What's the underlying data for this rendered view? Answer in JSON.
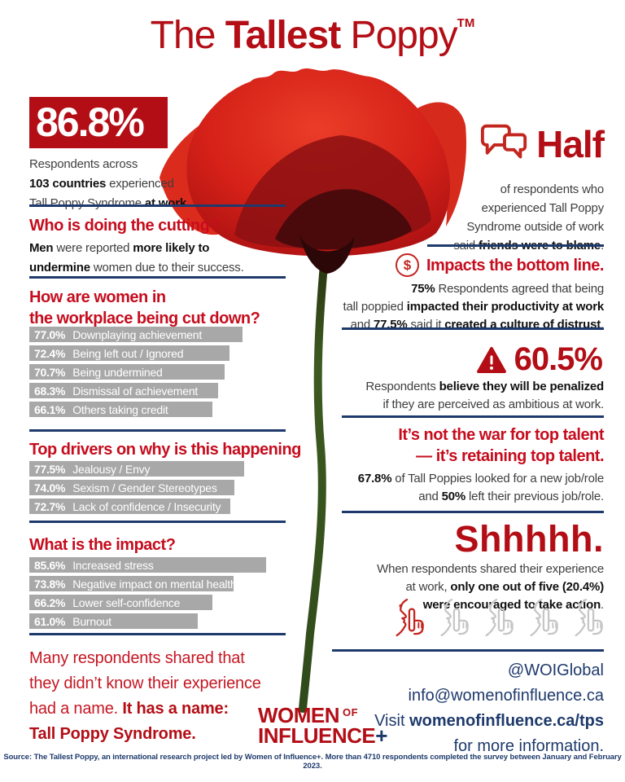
{
  "palette": {
    "red_primary": "#b30e16",
    "red_heading": "#c60d1e",
    "navy": "#1e3a6c",
    "bar_gray": "#a8a8a8",
    "body_gray": "#3e3e3e"
  },
  "title": {
    "pre": "The ",
    "bold": "Tallest",
    "post": " Poppy",
    "tm": "TM"
  },
  "left": {
    "stat": {
      "value": "86.8%",
      "desc": [
        {
          "t": "Respondents across\n"
        },
        {
          "t": "103 countries",
          "b": true
        },
        {
          "t": " experienced\nTall Poppy Syndrome "
        },
        {
          "t": "at work",
          "b": true
        },
        {
          "t": "."
        }
      ]
    },
    "who": {
      "heading": "Who is doing the cutting?",
      "desc": [
        {
          "t": "Men",
          "b": true
        },
        {
          "t": " were reported "
        },
        {
          "t": "more likely to\nundermine",
          "b": true
        },
        {
          "t": " women due to their success."
        }
      ]
    },
    "how": {
      "heading": "How are women in\nthe workplace being cut down?"
    },
    "drivers": {
      "heading": "Top drivers on why is this happening"
    },
    "impact": {
      "heading": "What is the impact?"
    },
    "closing": [
      {
        "t": "Many respondents shared that\nthey didn’t know their experience\nhad a name. "
      },
      {
        "t": "It has a name:\nTall Poppy Syndrome.",
        "b": true
      }
    ]
  },
  "right": {
    "half": {
      "word": "Half",
      "icon": "speech-bubbles-icon",
      "desc": [
        {
          "t": "of respondents who\nexperienced Tall Poppy\nSyndrome outside of work\nsaid "
        },
        {
          "t": "friends were to blame",
          "b": true
        },
        {
          "t": "."
        }
      ]
    },
    "bottomline": {
      "heading": "Impacts the bottom line.",
      "icon": "dollar-circle-icon",
      "dollar": "$",
      "desc": [
        {
          "t": "75%",
          "b": true
        },
        {
          "t": " Respondents agreed that being\ntall poppied "
        },
        {
          "t": "impacted their productivity at work",
          "b": true
        },
        {
          "t": "\nand "
        },
        {
          "t": "77.5%",
          "b": true
        },
        {
          "t": " said it "
        },
        {
          "t": "created a culture of distrust",
          "b": true
        },
        {
          "t": "."
        }
      ]
    },
    "penalized": {
      "value": "60.5%",
      "icon": "warning-triangle-icon",
      "desc": [
        {
          "t": "Respondents "
        },
        {
          "t": "believe they will be penalized",
          "b": true
        },
        {
          "t": "\nif they are perceived as ambitious at work."
        }
      ]
    },
    "talent": {
      "heading": "It’s not the war for top talent\n— it’s retaining top talent.",
      "desc": [
        {
          "t": "67.8%",
          "b": true
        },
        {
          "t": " of Tall Poppies looked for a new job/role\nand "
        },
        {
          "t": "50%",
          "b": true
        },
        {
          "t": " left their previous job/role."
        }
      ]
    },
    "shh": {
      "word": "Shhhhh.",
      "desc": [
        {
          "t": "When respondents shared their experience\nat work, "
        },
        {
          "t": "only one out of five (20.4%)",
          "b": true
        },
        {
          "t": "\n"
        },
        {
          "t": "were encouraged to take action",
          "b": true
        },
        {
          "t": "."
        }
      ],
      "icons": {
        "name": "shh-face-icon",
        "count": 5,
        "highlighted": 1
      }
    },
    "contact": [
      {
        "t": "@WOIGlobal\ninfo@womenofinfluence.ca\nVisit "
      },
      {
        "t": "womenofinfluence.ca/tps",
        "b": true
      },
      {
        "t": "\nfor more information."
      }
    ]
  },
  "logo": {
    "word1": "WOMEN",
    "of": "OF",
    "word2": "INFLUENCE",
    "plus": "+"
  },
  "source": "Source: The Tallest Poppy, an international research project led by Women of Influence+. More than 4710 respondents completed the survey between January and February 2023.",
  "chart_data": [
    {
      "type": "bar",
      "title": "How are women in the workplace being cut down?",
      "categories": [
        "Downplaying achievement",
        "Being left out / Ignored",
        "Being undermined",
        "Dismissal of achievement",
        "Others taking credit"
      ],
      "values": [
        77.0,
        72.4,
        70.7,
        68.3,
        66.1
      ],
      "unit": "%",
      "bar_color": "#a8a8a8",
      "value_labels_inside": true
    },
    {
      "type": "bar",
      "title": "Top drivers on why is this happening",
      "categories": [
        "Jealousy / Envy",
        "Sexism / Gender Stereotypes",
        "Lack of confidence / Insecurity"
      ],
      "values": [
        77.5,
        74.0,
        72.7
      ],
      "unit": "%",
      "bar_color": "#a8a8a8",
      "value_labels_inside": true
    },
    {
      "type": "bar",
      "title": "What is the impact?",
      "categories": [
        "Increased stress",
        "Negative impact on mental health",
        "Lower self-confidence",
        "Burnout"
      ],
      "values": [
        85.6,
        73.8,
        66.2,
        61.0
      ],
      "unit": "%",
      "bar_color": "#a8a8a8",
      "value_labels_inside": true
    }
  ]
}
